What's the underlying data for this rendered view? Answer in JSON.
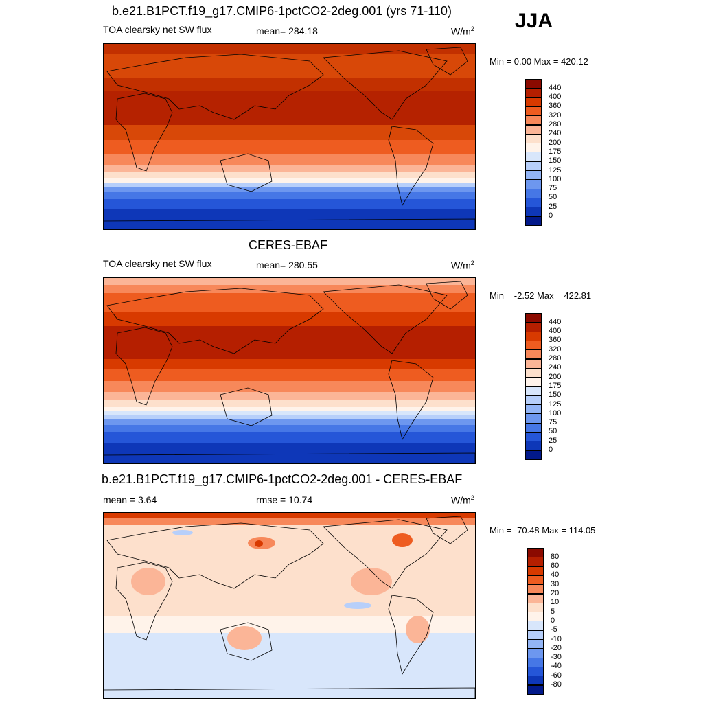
{
  "season": "JJA",
  "panels": [
    {
      "title": "b.e21.B1PCT.f19_g17.CMIP6-1pctCO2-2deg.001 (yrs 71-110)",
      "left_label": "TOA clearsky net SW flux",
      "center_label": "mean= 284.18",
      "units_base": "W/m",
      "units_exp": "2",
      "minmax": "Min =   0.00 Max = 420.12"
    },
    {
      "title": "CERES-EBAF",
      "left_label": "TOA clearsky net SW flux",
      "center_label": "mean= 280.55",
      "units_base": "W/m",
      "units_exp": "2",
      "minmax": "Min =  -2.52 Max = 422.81"
    },
    {
      "title": "b.e21.B1PCT.f19_g17.CMIP6-1pctCO2-2deg.001 - CERES-EBAF",
      "left_label": "mean =   3.64",
      "center_label": "rmse =  10.74",
      "units_base": "W/m",
      "units_exp": "2",
      "minmax": "Min = -70.48 Max = 114.05"
    }
  ],
  "chart_data": [
    {
      "type": "heatmap",
      "title": "b.e21.B1PCT.f19_g17.CMIP6-1pctCO2-2deg.001 (yrs 71-110)",
      "variable": "TOA clearsky net SW flux",
      "units": "W/m2",
      "mean": 284.18,
      "min": 0.0,
      "max": 420.12,
      "colorbar_levels": [
        "440",
        "400",
        "360",
        "320",
        "280",
        "240",
        "200",
        "175",
        "150",
        "125",
        "100",
        "75",
        "50",
        "25",
        "0"
      ],
      "colorbar_colors": [
        "#8b0a00",
        "#b51f00",
        "#d83a00",
        "#ee5c20",
        "#f7885a",
        "#fbb597",
        "#fde0cc",
        "#fff3ea",
        "#d8e6fb",
        "#b7cffa",
        "#93b5f6",
        "#6d97ef",
        "#4677e6",
        "#2556d8",
        "#0e37b8",
        "#02198a"
      ]
    },
    {
      "type": "heatmap",
      "title": "CERES-EBAF",
      "variable": "TOA clearsky net SW flux",
      "units": "W/m2",
      "mean": 280.55,
      "min": -2.52,
      "max": 422.81,
      "colorbar_levels": [
        "440",
        "400",
        "360",
        "320",
        "280",
        "240",
        "200",
        "175",
        "150",
        "125",
        "100",
        "75",
        "50",
        "25",
        "0"
      ],
      "colorbar_colors": [
        "#8b0a00",
        "#b51f00",
        "#d83a00",
        "#ee5c20",
        "#f7885a",
        "#fbb597",
        "#fde0cc",
        "#fff3ea",
        "#d8e6fb",
        "#b7cffa",
        "#93b5f6",
        "#6d97ef",
        "#4677e6",
        "#2556d8",
        "#0e37b8",
        "#02198a"
      ]
    },
    {
      "type": "heatmap",
      "title": "b.e21.B1PCT.f19_g17.CMIP6-1pctCO2-2deg.001 - CERES-EBAF",
      "mean": 3.64,
      "rmse": 10.74,
      "units": "W/m2",
      "min": -70.48,
      "max": 114.05,
      "colorbar_levels": [
        "80",
        "60",
        "40",
        "30",
        "20",
        "10",
        "5",
        "0",
        "-5",
        "-10",
        "-20",
        "-30",
        "-40",
        "-60",
        "-80"
      ],
      "colorbar_colors": [
        "#8b0a00",
        "#b51f00",
        "#d83a00",
        "#ee5c20",
        "#f7885a",
        "#fbb597",
        "#fde0cc",
        "#fff3ea",
        "#d8e6fb",
        "#b7cffa",
        "#93b5f6",
        "#6d97ef",
        "#4677e6",
        "#2556d8",
        "#0e37b8",
        "#02198a"
      ]
    }
  ]
}
